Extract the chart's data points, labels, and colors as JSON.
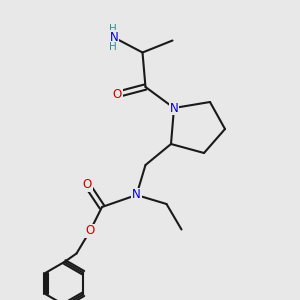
{
  "bg_color": "#e8e8e8",
  "bond_color": "#1a1a1a",
  "bond_width": 1.5,
  "atom_colors": {
    "C": "#1a1a1a",
    "N": "#0000cc",
    "O": "#cc0000",
    "H": "#2a9090"
  },
  "font_size": 8.5,
  "figsize": [
    3.0,
    3.0
  ],
  "dpi": 100,
  "xlim": [
    0,
    10
  ],
  "ylim": [
    0,
    10
  ]
}
